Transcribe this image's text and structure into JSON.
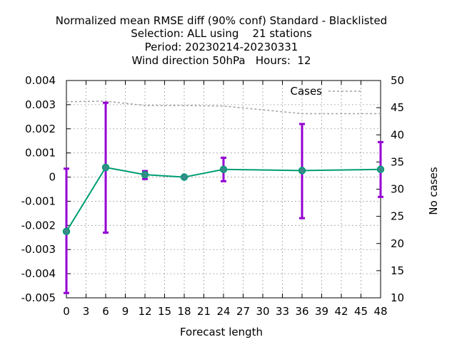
{
  "chart_data": {
    "type": "line",
    "title_lines": [
      "Normalized mean RMSE diff (90% conf) Standard - Blacklisted",
      "Selection: ALL using    21 stations",
      "Period: 20230214-20230331",
      "Wind direction 50hPa   Hours:  12"
    ],
    "xlabel": "Forecast length",
    "ylabel": "",
    "y2label": "No cases",
    "xlim": [
      0,
      48
    ],
    "ylim": [
      -0.005,
      0.004
    ],
    "y2lim": [
      10,
      50
    ],
    "xticks": [
      "0",
      "3",
      "6",
      "9",
      "12",
      "15",
      "18",
      "21",
      "24",
      "27",
      "30",
      "33",
      "36",
      "39",
      "42",
      "45",
      "48"
    ],
    "yticks": [
      "0.004",
      "0.003",
      "0.002",
      "0.001",
      "0",
      "-0.001",
      "-0.002",
      "-0.003",
      "-0.004",
      "-0.005"
    ],
    "y2ticks": [
      "50",
      "45",
      "40",
      "35",
      "30",
      "25",
      "20",
      "15",
      "10"
    ],
    "grid": true,
    "legend_position": "top-right",
    "colors": {
      "diff": "#009e73",
      "errorbar": "#9400d3",
      "cases": "#a0a0a0"
    },
    "series": [
      {
        "x": [
          0,
          6,
          12,
          18,
          24,
          36,
          48
        ],
        "values": [
          -0.00225,
          0.0004,
          0.0001,
          0.0,
          0.00032,
          0.00027,
          0.00032
        ],
        "err_low": [
          -0.0048,
          -0.0023,
          -8e-05,
          -3e-05,
          -0.00017,
          -0.0017,
          -0.00082
        ],
        "err_high": [
          0.00035,
          0.00308,
          0.00025,
          3e-05,
          0.0008,
          0.0022,
          0.00145
        ]
      },
      {
        "name": "Cases",
        "axis": "y2",
        "x": [
          0,
          6,
          12,
          18,
          24,
          36,
          48
        ],
        "values": [
          46.1,
          46.2,
          45.4,
          45.4,
          45.3,
          43.9,
          43.9
        ]
      }
    ]
  }
}
